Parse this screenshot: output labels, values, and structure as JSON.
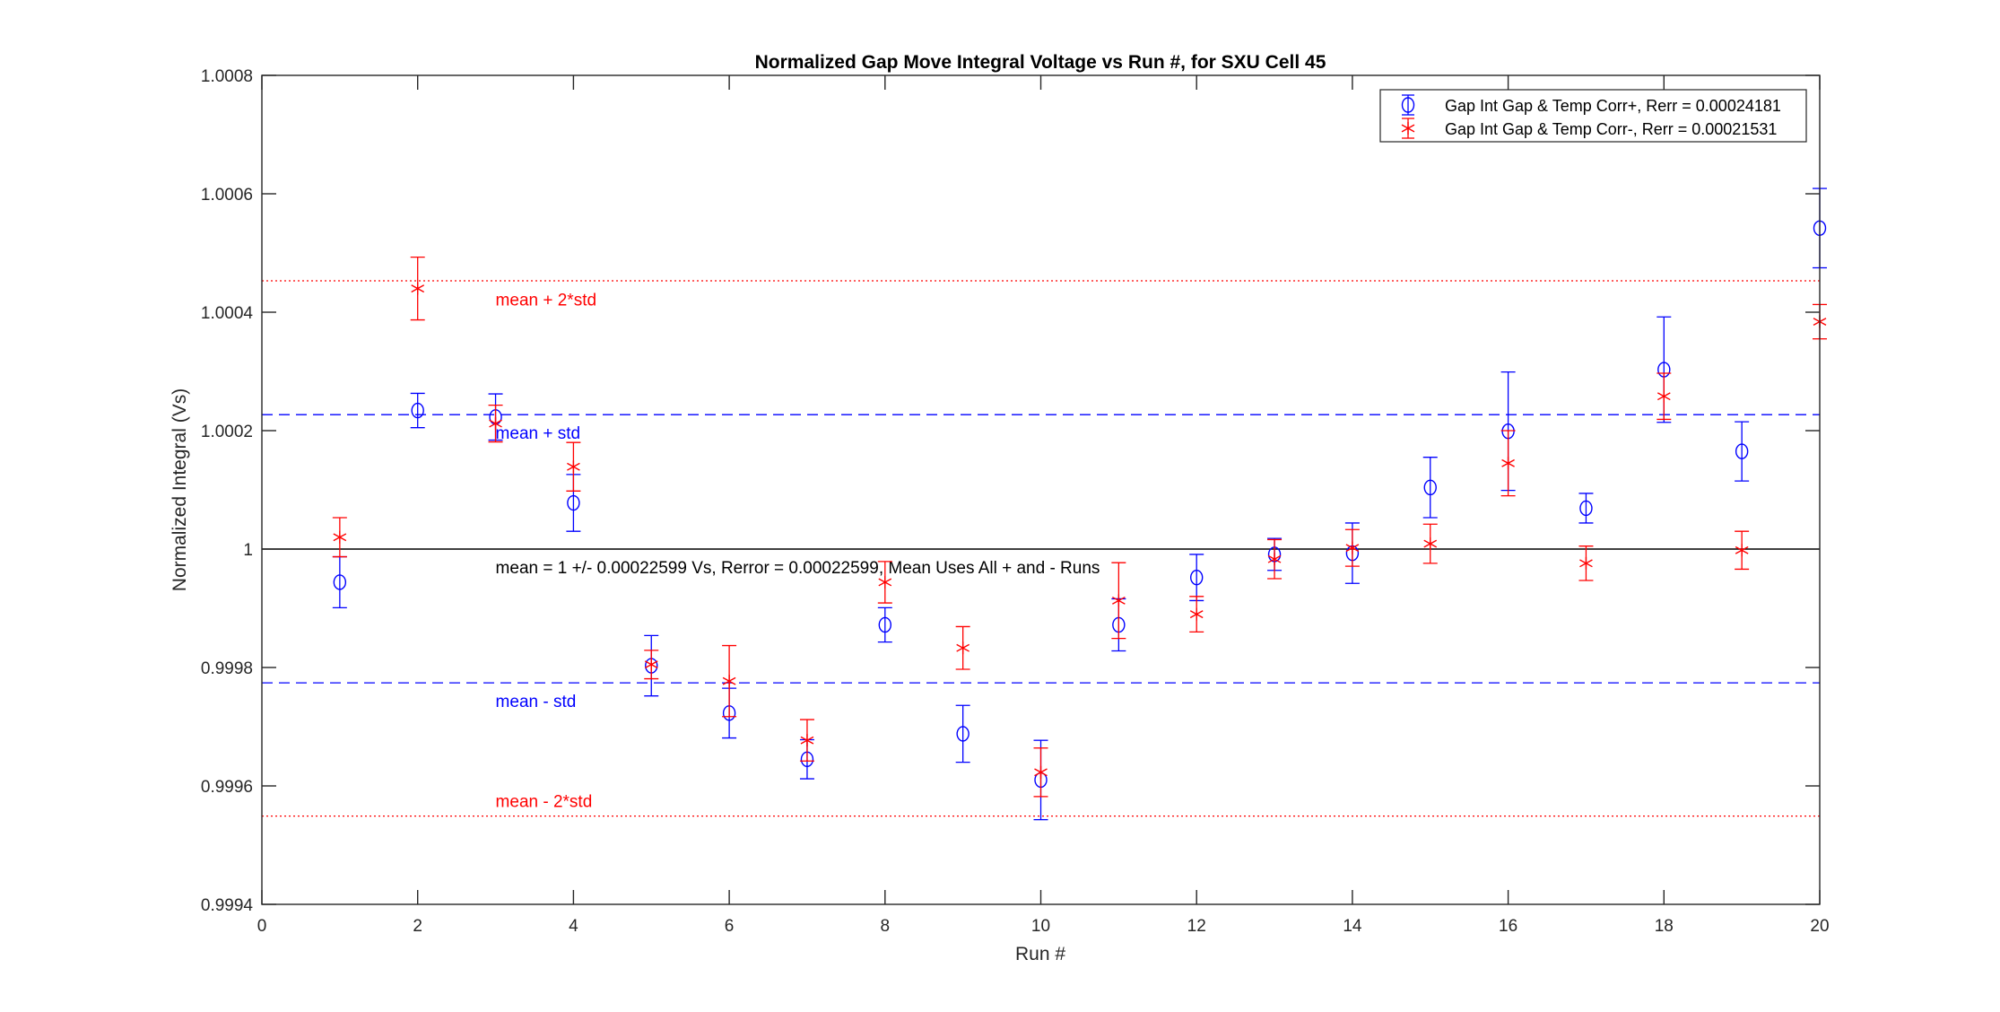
{
  "chart_data": {
    "type": "scatter",
    "title": "Normalized Gap Move Integral Voltage vs Run #, for SXU Cell 45",
    "xlabel": "Run #",
    "ylabel": "Normalized Integral (Vs)",
    "xlim": [
      0,
      20
    ],
    "ylim": [
      0.9994,
      1.0008
    ],
    "xticks": [
      0,
      2,
      4,
      6,
      8,
      10,
      12,
      14,
      16,
      18,
      20
    ],
    "xtick_labels": [
      "0",
      "2",
      "4",
      "6",
      "8",
      "10",
      "12",
      "14",
      "16",
      "18",
      "20"
    ],
    "yticks": [
      0.9994,
      0.9996,
      0.9998,
      1.0,
      1.0002,
      1.0004,
      1.0006,
      1.0008
    ],
    "ytick_labels": [
      "0.9994",
      "0.9996",
      "0.9998",
      "1",
      "1.0002",
      "1.0004",
      "1.0006",
      "1.0008"
    ],
    "grid": false,
    "legend_placement": "top-right",
    "series": [
      {
        "name": "Gap Int Gap & Temp Corr+, Rerr = 0.00024181",
        "marker": "circle",
        "color": "#0000ff",
        "x": [
          1,
          2,
          3,
          4,
          5,
          6,
          7,
          8,
          9,
          10,
          11,
          12,
          13,
          14,
          15,
          16,
          17,
          18,
          19,
          20
        ],
        "y": [
          0.999944,
          1.000234,
          1.000223,
          1.000078,
          0.999803,
          0.999723,
          0.999645,
          0.999872,
          0.999688,
          0.99961,
          0.999872,
          0.999952,
          0.999991,
          0.999993,
          1.000104,
          1.000199,
          1.000069,
          1.000303,
          1.000165,
          1.000542
        ],
        "err": [
          4.3e-05,
          2.9e-05,
          3.9e-05,
          4.8e-05,
          5.1e-05,
          4.2e-05,
          3.3e-05,
          2.9e-05,
          4.8e-05,
          6.7e-05,
          4.4e-05,
          3.9e-05,
          2.7e-05,
          5.1e-05,
          5.1e-05,
          0.0001,
          2.5e-05,
          8.9e-05,
          5e-05,
          6.7e-05
        ]
      },
      {
        "name": "Gap Int Gap & Temp  Corr-, Rerr = 0.00021531",
        "marker": "asterisk",
        "color": "#ff0000",
        "x": [
          1,
          2,
          3,
          4,
          5,
          6,
          7,
          8,
          9,
          10,
          11,
          12,
          13,
          14,
          15,
          16,
          17,
          18,
          19,
          20
        ],
        "y": [
          1.00002,
          1.00044,
          1.000212,
          1.000139,
          0.999805,
          0.999777,
          0.999677,
          0.999944,
          0.999833,
          0.999623,
          0.999913,
          0.99989,
          0.999983,
          1.000002,
          1.000009,
          1.000145,
          0.999976,
          1.000258,
          0.999998,
          1.000384
        ],
        "err": [
          3.3e-05,
          5.3e-05,
          3.1e-05,
          4.1e-05,
          2.4e-05,
          6e-05,
          3.5e-05,
          3.5e-05,
          3.6e-05,
          4.1e-05,
          6.4e-05,
          3e-05,
          3.3e-05,
          3.1e-05,
          3.3e-05,
          5.5e-05,
          2.9e-05,
          3.9e-05,
          3.2e-05,
          2.9e-05
        ]
      }
    ],
    "reference_lines": [
      {
        "name": "mean-plus-2std",
        "y": 1.000453,
        "style": "dotted",
        "color": "#ff0000",
        "label": "mean + 2*std",
        "label_x": 3,
        "label_y": 1.000422
      },
      {
        "name": "mean-plus-std",
        "y": 1.000227,
        "style": "dashed",
        "color": "#0000ff",
        "label": "mean + std",
        "label_x": 3,
        "label_y": 1.000197
      },
      {
        "name": "mean",
        "y": 1.0,
        "style": "solid",
        "color": "#000000",
        "label": "mean = 1 +/- 0.00022599 Vs, Rerror = 0.00022599, Mean Uses All + and - Runs",
        "label_x": 3,
        "label_y": 0.99997
      },
      {
        "name": "mean-minus-std",
        "y": 0.999774,
        "style": "dashed",
        "color": "#0000ff",
        "label": "mean - std",
        "label_x": 3,
        "label_y": 0.999744
      },
      {
        "name": "mean-minus-2std",
        "y": 0.999549,
        "style": "dotted",
        "color": "#ff0000",
        "label": "mean - 2*std",
        "label_x": 3,
        "label_y": 0.999575
      }
    ]
  }
}
